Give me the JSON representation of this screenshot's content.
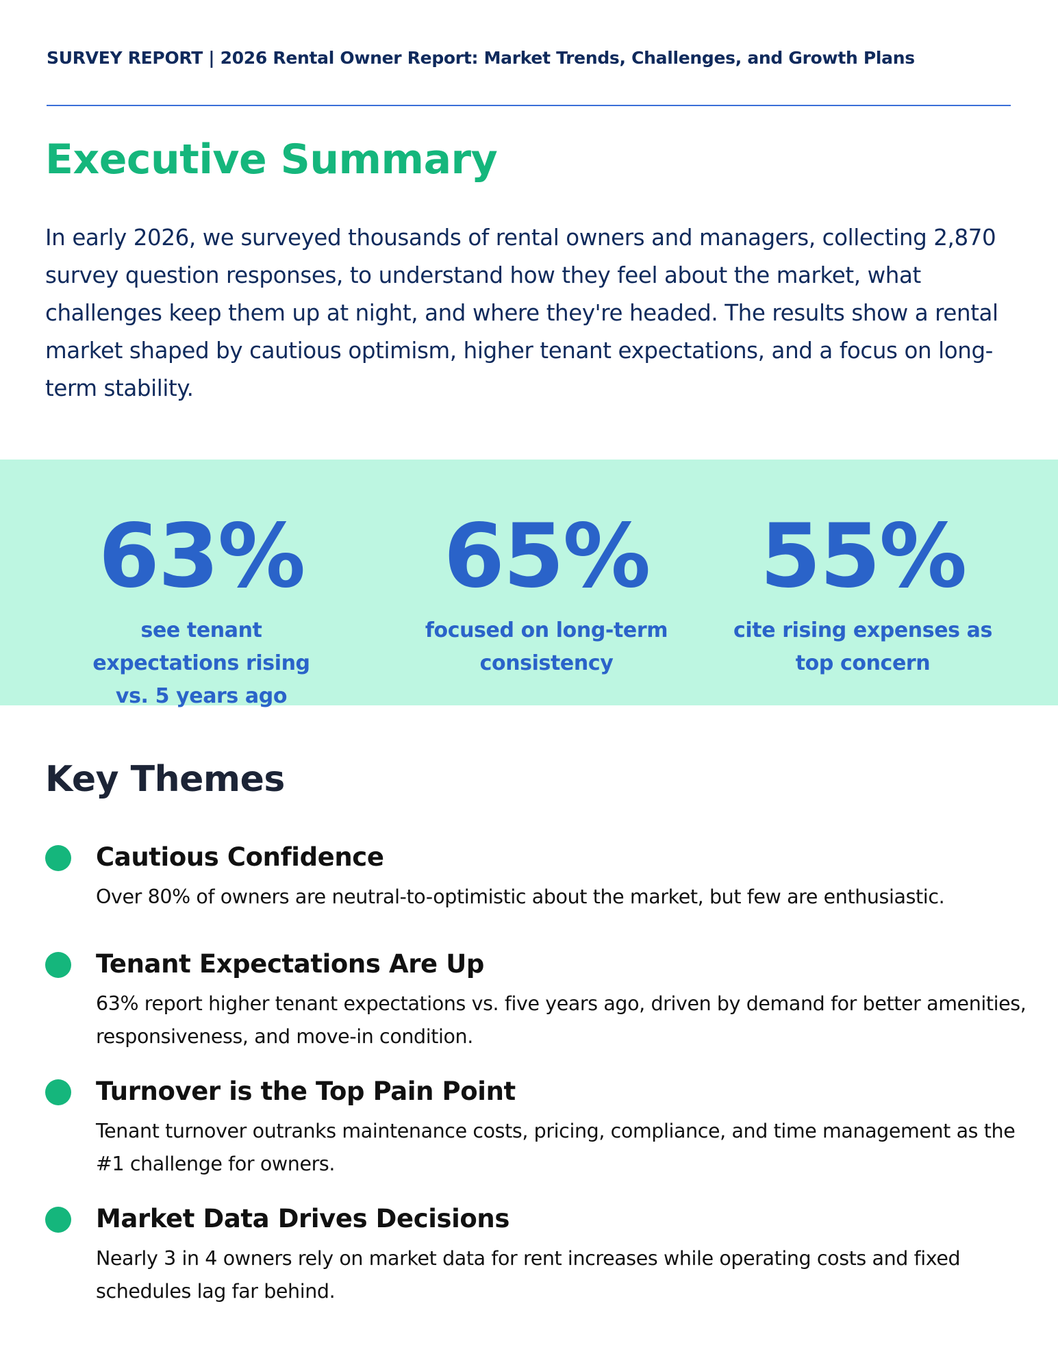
{
  "header": {
    "title": "SURVEY REPORT | 2026 Rental Owner Report: Market Trends, Challenges, and Growth Plans"
  },
  "executive_summary": {
    "title": "Executive Summary",
    "body": "In early 2026, we surveyed thousands of rental owners and managers, collecting 2,870 survey question responses, to understand how they feel about the market, what challenges keep them up at night, and where they're headed. The results show a rental market shaped by cautious optimism, higher tenant expectations, and a focus on long-term stability."
  },
  "stats": [
    {
      "value": "63%",
      "label": "see tenant expectations rising vs. 5 years ago"
    },
    {
      "value": "65%",
      "label": "focused on long-term consistency"
    },
    {
      "value": "55%",
      "label": "cite rising expenses as top concern"
    }
  ],
  "key_themes": {
    "title": "Key Themes",
    "items": [
      {
        "heading": "Cautious Confidence",
        "body": "Over 80% of owners are neutral-to-optimistic about the market, but few are enthusiastic."
      },
      {
        "heading": "Tenant Expectations Are Up",
        "body": "63% report higher tenant expectations vs. five years ago, driven by demand for better amenities, responsiveness, and move-in condition."
      },
      {
        "heading": "Turnover is the Top Pain Point",
        "body": "Tenant turnover outranks maintenance costs, pricing, compliance, and time management as the #1 challenge for owners."
      },
      {
        "heading": "Market Data Drives Decisions",
        "body": "Nearly 3 in 4 owners rely on market data for rent increases while operating costs and fixed schedules lag far behind."
      }
    ]
  },
  "colors": {
    "navy": "#0f2a5c",
    "green": "#15b67c",
    "blue": "#2a63c9",
    "mint_band": "#bdf6e1",
    "rule": "#3a6fd8"
  }
}
